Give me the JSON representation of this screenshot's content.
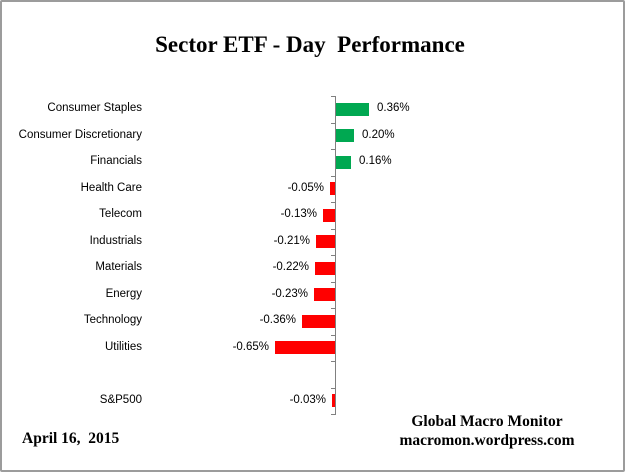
{
  "title": "Sector ETF - Day  Performance",
  "footer": {
    "date": "April 16,  2015",
    "credit_line1": "Global Macro Monitor",
    "credit_line2": "macromon.wordpress.com"
  },
  "chart_data": {
    "type": "bar",
    "orientation": "horizontal",
    "title": "Sector ETF - Day  Performance",
    "categories": [
      "Consumer Staples",
      "Consumer Discretionary",
      "Financials",
      "Health Care",
      "Telecom",
      "Industrials",
      "Materials",
      "Energy",
      "Technology",
      "Utilities",
      "S&P500"
    ],
    "values": [
      0.36,
      0.2,
      0.16,
      -0.05,
      -0.13,
      -0.21,
      -0.22,
      -0.23,
      -0.36,
      -0.65,
      -0.03
    ],
    "value_labels": [
      "0.36%",
      "0.20%",
      "0.16%",
      "-0.05%",
      "-0.13%",
      "-0.21%",
      "-0.22%",
      "-0.23%",
      "-0.36%",
      "-0.65%",
      "-0.03%"
    ],
    "spacer_row_before_last": true,
    "positive_color": "#00A851",
    "negative_color": "#FF0000",
    "axis": {
      "baseline_value": 0,
      "gridlines": false,
      "tick_marks": true,
      "tick_color": "#808080"
    }
  }
}
